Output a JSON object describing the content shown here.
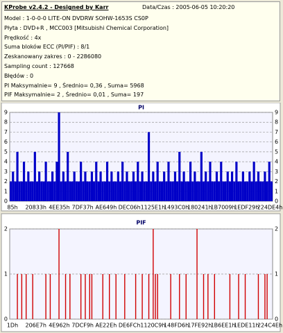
{
  "header": {
    "title": "KProbe v2.4.2 - Designed by Karr",
    "datetime": "Data/Czas : 2005-06-05 10:20:20",
    "lines": [
      "Model : 1-0-0-0 LITE-ON DVDRW SOHW-1653S CS0P",
      "Płyta : DVD+R , MCC003 [Mitsubishi Chemical Corporation]",
      "Prędkość : 4x",
      "Suma bloków ECC (PI/PIF) : 8/1",
      "Zeskanowany zakres : 0 - 2286080",
      "Sampling count : 127668",
      "Błędów : 0",
      "PI Maksymalnie= 9 , Średnio= 0,36 , Suma= 5968",
      "PIF Maksymalnie= 2 , Średnio= 0,01 , Suma= 197"
    ]
  },
  "chart_data": [
    {
      "type": "bar",
      "title": "PI",
      "color": "#0000c8",
      "ylim": [
        0,
        9
      ],
      "yticks": [
        0,
        1,
        2,
        3,
        4,
        5,
        6,
        7,
        8,
        9
      ],
      "grid": true,
      "x_labels": [
        "85h",
        "20833h",
        "4EE35h",
        "7DF37h",
        "AE649h",
        "DEC06h",
        "1125E1h",
        "1493C0h",
        "180241h",
        "1B7009h",
        "1EDF29h",
        "224DE4h"
      ],
      "values": [
        2,
        3,
        2,
        5,
        2,
        2,
        4,
        2,
        3,
        2,
        2,
        5,
        2,
        3,
        2,
        2,
        4,
        2,
        2,
        3,
        2,
        4,
        9,
        2,
        3,
        2,
        5,
        2,
        2,
        3,
        2,
        2,
        4,
        2,
        3,
        2,
        2,
        3,
        2,
        4,
        2,
        3,
        2,
        2,
        4,
        2,
        3,
        2,
        2,
        3,
        2,
        4,
        2,
        3,
        2,
        2,
        3,
        2,
        4,
        2,
        3,
        2,
        2,
        7,
        2,
        3,
        2,
        4,
        2,
        2,
        3,
        2,
        4,
        2,
        2,
        3,
        2,
        5,
        2,
        3,
        2,
        2,
        4,
        2,
        3,
        2,
        2,
        5,
        2,
        3,
        2,
        4,
        2,
        2,
        3,
        2,
        4,
        2,
        2,
        3,
        2,
        3,
        2,
        4,
        2,
        2,
        3,
        2,
        2,
        3,
        2,
        4,
        2,
        3,
        2,
        2,
        3,
        2,
        4,
        2
      ]
    },
    {
      "type": "bar",
      "title": "PIF",
      "color": "#d00000",
      "ylim": [
        0,
        2
      ],
      "yticks": [
        0,
        1,
        2
      ],
      "grid": true,
      "x_labels": [
        "1Dh",
        "206E7h",
        "4E962h",
        "7DCF9h",
        "AE22Eh",
        "DE6FCh",
        "1120C9h",
        "148FD6h",
        "17FE92h",
        "1B6EE1h",
        "1EDE11h",
        "224C4Eh"
      ],
      "values": [
        0,
        0,
        0,
        1,
        0,
        1,
        0,
        1,
        0,
        0,
        1,
        0,
        0,
        0,
        0,
        0,
        1,
        0,
        1,
        0,
        0,
        0,
        2,
        0,
        0,
        1,
        0,
        1,
        0,
        0,
        0,
        0,
        1,
        0,
        1,
        0,
        1,
        1,
        0,
        0,
        0,
        0,
        1,
        0,
        0,
        1,
        0,
        0,
        1,
        0,
        0,
        0,
        1,
        0,
        0,
        0,
        0,
        1,
        0,
        0,
        1,
        0,
        0,
        1,
        0,
        2,
        1,
        1,
        0,
        0,
        0,
        0,
        0,
        1,
        0,
        0,
        0,
        1,
        0,
        0,
        1,
        0,
        0,
        0,
        0,
        2,
        0,
        0,
        1,
        0,
        1,
        0,
        0,
        1,
        0,
        0,
        0,
        0,
        0,
        0,
        1,
        0,
        0,
        0,
        1,
        0,
        0,
        1,
        0,
        0,
        0,
        0,
        0,
        1,
        0,
        0,
        1,
        1,
        0,
        0
      ]
    }
  ]
}
